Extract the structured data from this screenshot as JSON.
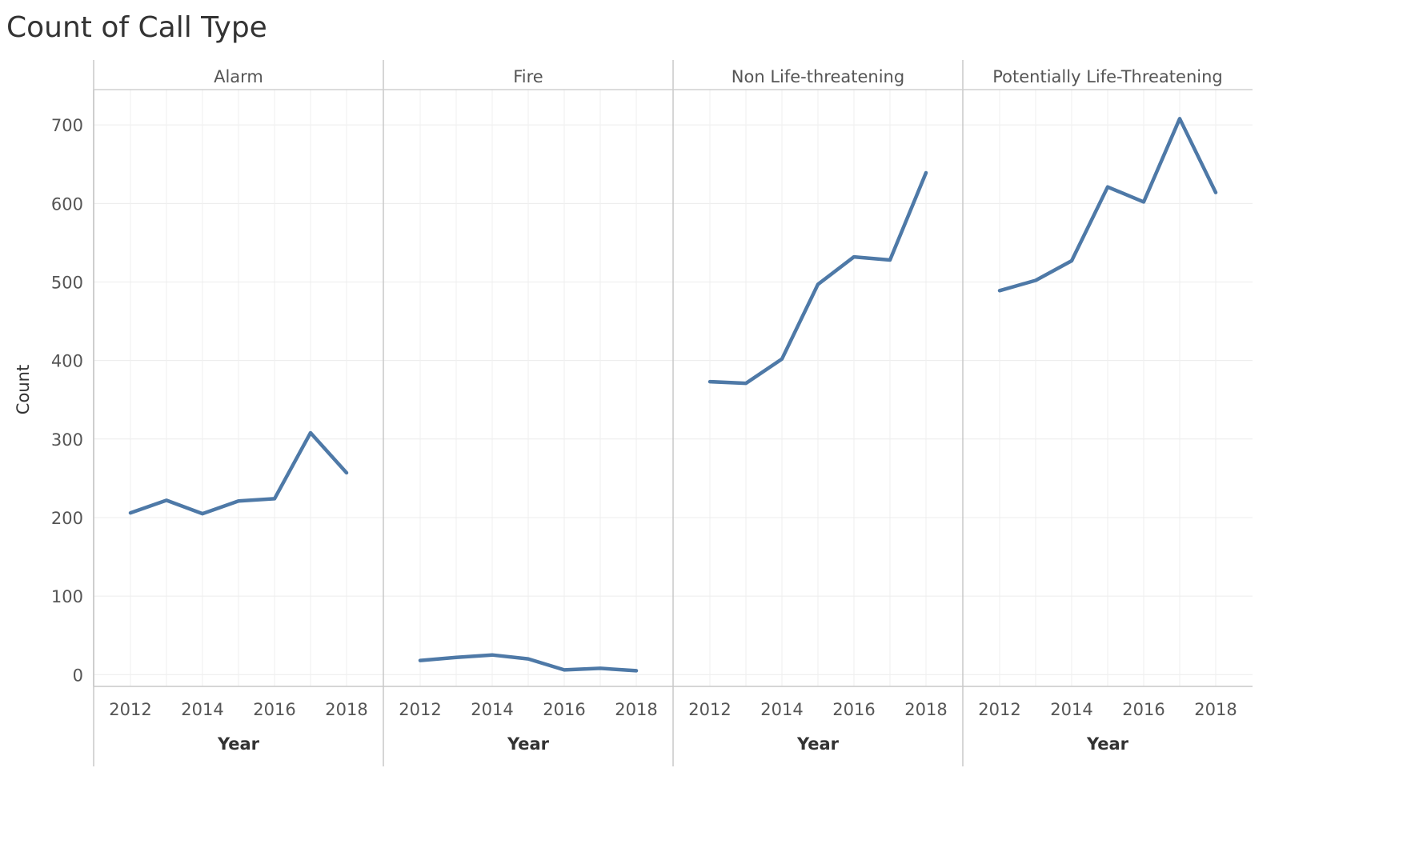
{
  "chart_data": {
    "type": "line",
    "title": "Count of Call Type",
    "ylabel": "Count",
    "xlabel": "Year",
    "ylim": [
      -15,
      745
    ],
    "xlim": [
      2011.5,
      2018.5
    ],
    "y_ticks": [
      0,
      100,
      200,
      300,
      400,
      500,
      600,
      700
    ],
    "x_ticks": [
      2012,
      2014,
      2016,
      2018
    ],
    "x": [
      2012,
      2013,
      2014,
      2015,
      2016,
      2017,
      2018
    ],
    "line_color": "#4e79a7",
    "grid": true,
    "panels": [
      {
        "name": "Alarm",
        "values": [
          206,
          222,
          205,
          221,
          224,
          308,
          257
        ]
      },
      {
        "name": "Fire",
        "values": [
          18,
          22,
          25,
          20,
          6,
          8,
          5
        ]
      },
      {
        "name": "Non Life-threatening",
        "values": [
          373,
          371,
          402,
          497,
          532,
          528,
          639
        ]
      },
      {
        "name": "Potentially Life-Threatening",
        "values": [
          489,
          502,
          527,
          621,
          602,
          708,
          614
        ]
      }
    ]
  }
}
